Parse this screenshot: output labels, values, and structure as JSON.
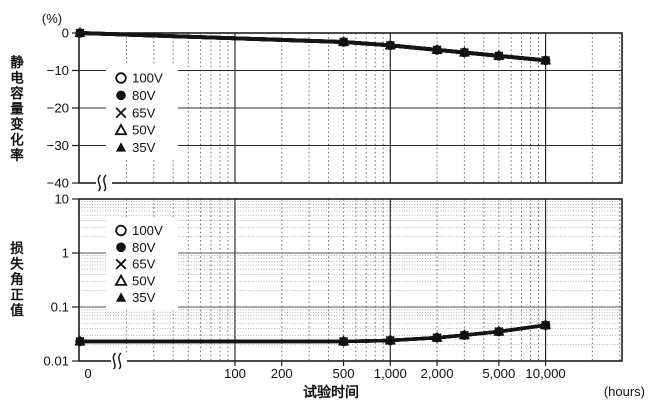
{
  "figure": {
    "background": "#ffffff"
  },
  "colors": {
    "line": "#141414",
    "grid_major": "#2b2b2b",
    "grid_minor": "#6b6b6b",
    "grid_dot": "#9a9a9a",
    "text": "#111111"
  },
  "legend": {
    "items": [
      {
        "symbol": "open-circle",
        "label": "100V"
      },
      {
        "symbol": "filled-circle",
        "label": "80V"
      },
      {
        "symbol": "cross",
        "label": "65V"
      },
      {
        "symbol": "open-triangle",
        "label": "50V"
      },
      {
        "symbol": "filled-triangle",
        "label": "35V"
      }
    ]
  },
  "x_axis": {
    "title": "试验时间",
    "unit": "(hours)",
    "scale": "log-with-zero-break",
    "tick_values": [
      0,
      100,
      200,
      500,
      1000,
      2000,
      5000,
      10000
    ],
    "tick_labels": [
      "0",
      "100",
      "200",
      "500",
      "1,000",
      "2,000",
      "5,000",
      "10,000"
    ]
  },
  "chart_data": [
    {
      "type": "line",
      "panel": "top",
      "ylabel": "静电容量变化率",
      "yunit": "(%)",
      "yscale": "linear",
      "ylim": [
        -40,
        0
      ],
      "ytick_values": [
        0,
        -10,
        -20,
        -30,
        -40
      ],
      "ytick_labels": [
        "0",
        "−10",
        "−20",
        "−30",
        "−40"
      ],
      "grid": true,
      "legend_position": "upper-left-inside",
      "x": [
        0,
        500,
        1000,
        2000,
        3000,
        5000,
        10000
      ],
      "series": [
        {
          "name": "100V",
          "marker": "open-circle",
          "values": [
            0,
            -2.4,
            -3.3,
            -4.5,
            -5.2,
            -6.1,
            -7.3
          ]
        },
        {
          "name": "80V",
          "marker": "filled-circle",
          "values": [
            0,
            -2.4,
            -3.3,
            -4.5,
            -5.2,
            -6.1,
            -7.3
          ]
        },
        {
          "name": "65V",
          "marker": "cross",
          "values": [
            0,
            -2.4,
            -3.3,
            -4.5,
            -5.2,
            -6.1,
            -7.3
          ]
        },
        {
          "name": "50V",
          "marker": "open-triangle",
          "values": [
            0,
            -2.4,
            -3.3,
            -4.5,
            -5.2,
            -6.1,
            -7.3
          ]
        },
        {
          "name": "35V",
          "marker": "filled-triangle",
          "values": [
            0,
            -2.4,
            -3.3,
            -4.5,
            -5.2,
            -6.1,
            -7.3
          ]
        }
      ]
    },
    {
      "type": "line",
      "panel": "bottom",
      "ylabel": "损失角正值",
      "yscale": "log",
      "ylim": [
        0.01,
        10
      ],
      "ytick_values": [
        10,
        1,
        0.1,
        0.01
      ],
      "ytick_labels": [
        "10",
        "1",
        "0.1",
        "0.01"
      ],
      "grid": true,
      "legend_position": "upper-left-inside",
      "x": [
        0,
        500,
        1000,
        2000,
        3000,
        5000,
        10000
      ],
      "series": [
        {
          "name": "100V",
          "marker": "open-circle",
          "values": [
            0.023,
            0.023,
            0.024,
            0.027,
            0.03,
            0.035,
            0.046
          ]
        },
        {
          "name": "80V",
          "marker": "filled-circle",
          "values": [
            0.023,
            0.023,
            0.024,
            0.027,
            0.03,
            0.035,
            0.046
          ]
        },
        {
          "name": "65V",
          "marker": "cross",
          "values": [
            0.023,
            0.023,
            0.024,
            0.027,
            0.03,
            0.035,
            0.046
          ]
        },
        {
          "name": "50V",
          "marker": "open-triangle",
          "values": [
            0.023,
            0.023,
            0.024,
            0.027,
            0.03,
            0.035,
            0.046
          ]
        },
        {
          "name": "35V",
          "marker": "filled-triangle",
          "values": [
            0.023,
            0.023,
            0.024,
            0.027,
            0.03,
            0.035,
            0.046
          ]
        }
      ]
    }
  ]
}
